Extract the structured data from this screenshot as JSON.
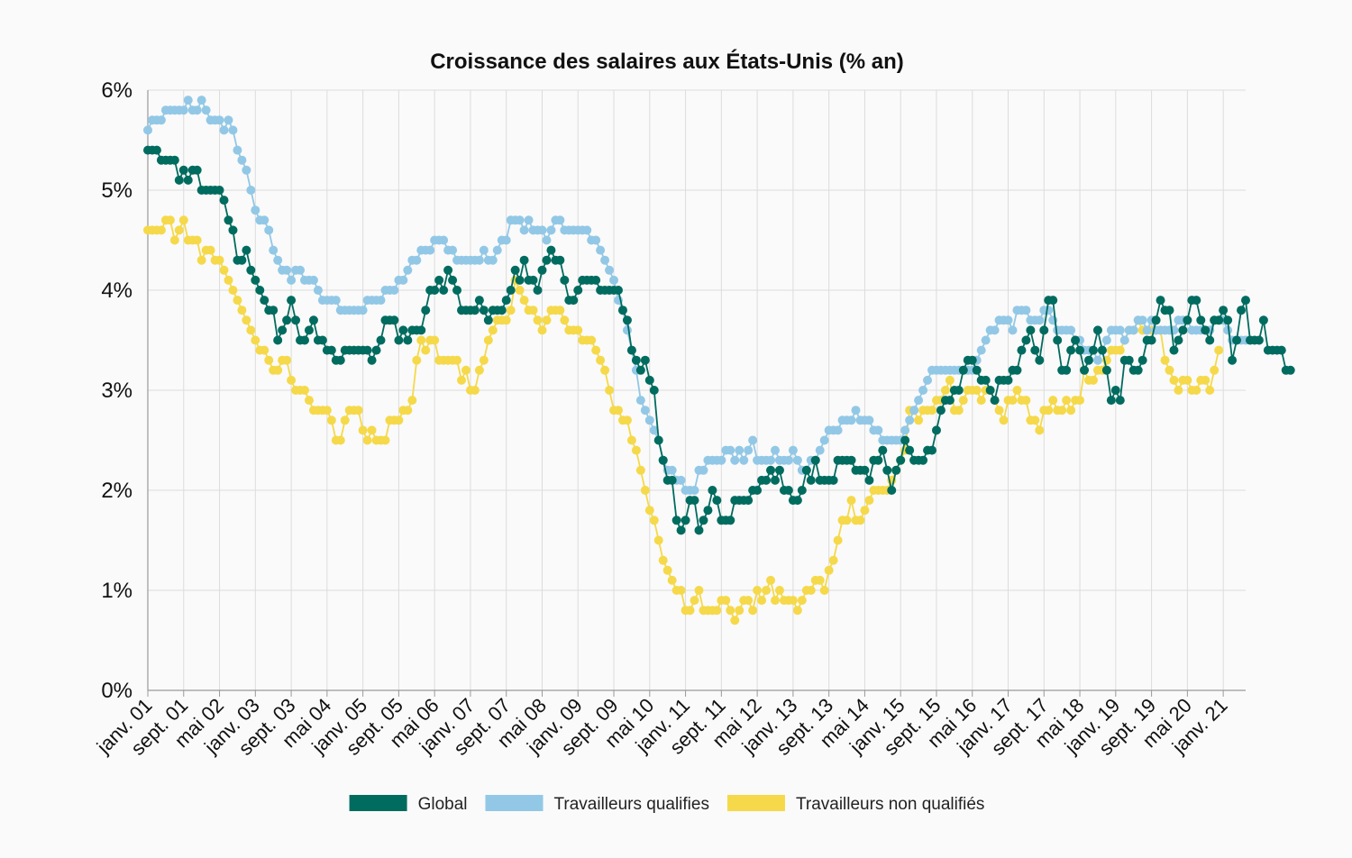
{
  "chart_data": {
    "type": "line",
    "title": "Croissance des salaires aux États-Unis (% an)",
    "xlabel": "",
    "ylabel": "",
    "ylim": [
      0,
      6
    ],
    "yticks": [
      0,
      1,
      2,
      3,
      4,
      5,
      6
    ],
    "ytick_labels": [
      "0%",
      "1%",
      "2%",
      "3%",
      "4%",
      "5%",
      "6%"
    ],
    "x_start": "2001-01",
    "x_end": "2021-06",
    "xtick_labels": [
      "janv. 01",
      "sept. 01",
      "mai 02",
      "janv. 03",
      "sept. 03",
      "mai 04",
      "janv. 05",
      "sept. 05",
      "mai 06",
      "janv. 07",
      "sept. 07",
      "mai 08",
      "janv. 09",
      "sept. 09",
      "mai 10",
      "janv. 11",
      "sept. 11",
      "mai 12",
      "janv. 13",
      "sept. 13",
      "mai 14",
      "janv. 15",
      "sept. 15",
      "mai 16",
      "janv. 17",
      "sept. 17",
      "mai 18",
      "janv. 19",
      "sept. 19",
      "mai 20",
      "janv. 21"
    ],
    "grid": true,
    "legend_position": "bottom",
    "series": [
      {
        "name": "Global",
        "color": "#006b5f",
        "values": [
          5.4,
          5.4,
          5.4,
          5.3,
          5.3,
          5.3,
          5.3,
          5.1,
          5.2,
          5.1,
          5.2,
          5.2,
          5.0,
          5.0,
          5.0,
          5.0,
          5.0,
          4.9,
          4.7,
          4.6,
          4.3,
          4.3,
          4.4,
          4.2,
          4.1,
          4.0,
          3.9,
          3.8,
          3.8,
          3.5,
          3.6,
          3.7,
          3.9,
          3.7,
          3.5,
          3.5,
          3.6,
          3.7,
          3.5,
          3.5,
          3.4,
          3.4,
          3.3,
          3.3,
          3.4,
          3.4,
          3.4,
          3.4,
          3.4,
          3.4,
          3.3,
          3.4,
          3.5,
          3.7,
          3.7,
          3.7,
          3.5,
          3.6,
          3.5,
          3.6,
          3.6,
          3.6,
          3.8,
          4.0,
          4.0,
          4.1,
          4.0,
          4.2,
          4.1,
          4.0,
          3.8,
          3.8,
          3.8,
          3.8,
          3.9,
          3.8,
          3.7,
          3.8,
          3.8,
          3.8,
          3.9,
          4.0,
          4.2,
          4.1,
          4.3,
          4.1,
          4.1,
          4.0,
          4.2,
          4.3,
          4.4,
          4.3,
          4.3,
          4.1,
          3.9,
          3.9,
          4.0,
          4.1,
          4.1,
          4.1,
          4.1,
          4.0,
          4.0,
          4.0,
          4.0,
          4.0,
          3.8,
          3.7,
          3.4,
          3.3,
          3.2,
          3.3,
          3.1,
          3.0,
          2.5,
          2.3,
          2.1,
          2.1,
          1.7,
          1.6,
          1.7,
          1.9,
          1.9,
          1.6,
          1.7,
          1.8,
          2.0,
          1.9,
          1.7,
          1.7,
          1.7,
          1.9,
          1.9,
          1.9,
          1.9,
          2.0,
          2.0,
          2.1,
          2.1,
          2.2,
          2.1,
          2.2,
          2.0,
          2.0,
          1.9,
          1.9,
          2.0,
          2.2,
          2.1,
          2.3,
          2.1,
          2.1,
          2.1,
          2.1,
          2.3,
          2.3,
          2.3,
          2.3,
          2.2,
          2.2,
          2.2,
          2.1,
          2.3,
          2.3,
          2.4,
          2.2,
          2.0,
          2.2,
          2.3,
          2.5,
          2.4,
          2.3,
          2.3,
          2.3,
          2.4,
          2.4,
          2.6,
          2.8,
          2.9,
          2.9,
          3.0,
          3.0,
          3.2,
          3.3,
          3.3,
          3.2,
          3.1,
          3.1,
          3.0,
          2.9,
          3.1,
          3.1,
          3.1,
          3.2,
          3.2,
          3.4,
          3.5,
          3.6,
          3.4,
          3.3,
          3.6,
          3.9,
          3.9,
          3.5,
          3.2,
          3.2,
          3.4,
          3.5,
          3.4,
          3.2,
          3.3,
          3.4,
          3.6,
          3.4,
          3.2,
          2.9,
          3.0,
          2.9,
          3.3,
          3.3,
          3.2,
          3.2,
          3.3,
          3.5,
          3.5,
          3.7,
          3.9,
          3.8,
          3.8,
          3.4,
          3.5,
          3.6,
          3.7,
          3.9,
          3.9,
          3.7,
          3.6,
          3.5,
          3.7,
          3.7,
          3.8,
          3.7,
          3.3,
          3.5,
          3.8,
          3.9,
          3.5,
          3.5,
          3.5,
          3.7,
          3.4,
          3.4,
          3.4,
          3.4,
          3.2,
          3.2
        ]
      },
      {
        "name": "Travailleurs qualifies",
        "color": "#92c8e6",
        "values": [
          5.6,
          5.7,
          5.7,
          5.7,
          5.8,
          5.8,
          5.8,
          5.8,
          5.8,
          5.9,
          5.8,
          5.8,
          5.9,
          5.8,
          5.7,
          5.7,
          5.7,
          5.6,
          5.7,
          5.6,
          5.4,
          5.3,
          5.2,
          5.0,
          4.8,
          4.7,
          4.7,
          4.6,
          4.4,
          4.3,
          4.2,
          4.2,
          4.1,
          4.2,
          4.2,
          4.1,
          4.1,
          4.1,
          4.0,
          3.9,
          3.9,
          3.9,
          3.9,
          3.8,
          3.8,
          3.8,
          3.8,
          3.8,
          3.8,
          3.9,
          3.9,
          3.9,
          3.9,
          4.0,
          4.0,
          4.0,
          4.1,
          4.1,
          4.2,
          4.3,
          4.3,
          4.4,
          4.4,
          4.4,
          4.5,
          4.5,
          4.5,
          4.4,
          4.4,
          4.3,
          4.3,
          4.3,
          4.3,
          4.3,
          4.3,
          4.4,
          4.3,
          4.3,
          4.4,
          4.5,
          4.5,
          4.7,
          4.7,
          4.7,
          4.6,
          4.7,
          4.6,
          4.6,
          4.6,
          4.5,
          4.6,
          4.7,
          4.7,
          4.6,
          4.6,
          4.6,
          4.6,
          4.6,
          4.6,
          4.5,
          4.5,
          4.4,
          4.3,
          4.2,
          4.1,
          3.9,
          3.8,
          3.6,
          3.4,
          3.2,
          2.9,
          2.8,
          2.7,
          2.6,
          2.5,
          2.3,
          2.2,
          2.2,
          2.1,
          2.1,
          2.0,
          2.0,
          2.0,
          2.2,
          2.2,
          2.3,
          2.3,
          2.3,
          2.3,
          2.4,
          2.4,
          2.3,
          2.4,
          2.3,
          2.4,
          2.5,
          2.3,
          2.3,
          2.3,
          2.3,
          2.4,
          2.3,
          2.3,
          2.3,
          2.4,
          2.3,
          2.2,
          2.2,
          2.3,
          2.3,
          2.4,
          2.5,
          2.6,
          2.6,
          2.6,
          2.7,
          2.7,
          2.7,
          2.8,
          2.7,
          2.7,
          2.7,
          2.6,
          2.6,
          2.5,
          2.5,
          2.5,
          2.5,
          2.5,
          2.6,
          2.7,
          2.8,
          2.9,
          3.0,
          3.1,
          3.2,
          3.2,
          3.2,
          3.2,
          3.2,
          3.2,
          3.2,
          3.2,
          3.2,
          3.2,
          3.3,
          3.4,
          3.5,
          3.6,
          3.6,
          3.7,
          3.7,
          3.7,
          3.6,
          3.8,
          3.8,
          3.8,
          3.7,
          3.7,
          3.7,
          3.8,
          3.8,
          3.7,
          3.6,
          3.6,
          3.6,
          3.6,
          3.5,
          3.5,
          3.4,
          3.4,
          3.4,
          3.3,
          3.4,
          3.5,
          3.6,
          3.6,
          3.6,
          3.5,
          3.6,
          3.6,
          3.7,
          3.7,
          3.6,
          3.7,
          3.6,
          3.6,
          3.6,
          3.6,
          3.6,
          3.7,
          3.7,
          3.7,
          3.6,
          3.6,
          3.6,
          3.6,
          3.6,
          3.7,
          3.7,
          3.7,
          3.6,
          3.5,
          3.5,
          3.5,
          3.5,
          3.5
        ]
      },
      {
        "name": "Travailleurs non qualifiés",
        "color": "#f5d94a",
        "values": [
          4.6,
          4.6,
          4.6,
          4.6,
          4.7,
          4.7,
          4.5,
          4.6,
          4.7,
          4.5,
          4.5,
          4.5,
          4.3,
          4.4,
          4.4,
          4.3,
          4.3,
          4.2,
          4.1,
          4.0,
          3.9,
          3.8,
          3.7,
          3.6,
          3.5,
          3.4,
          3.4,
          3.3,
          3.2,
          3.2,
          3.3,
          3.3,
          3.1,
          3.0,
          3.0,
          3.0,
          2.9,
          2.8,
          2.8,
          2.8,
          2.8,
          2.7,
          2.5,
          2.5,
          2.7,
          2.8,
          2.8,
          2.8,
          2.6,
          2.5,
          2.6,
          2.5,
          2.5,
          2.5,
          2.7,
          2.7,
          2.7,
          2.8,
          2.8,
          2.9,
          3.3,
          3.5,
          3.4,
          3.5,
          3.5,
          3.3,
          3.3,
          3.3,
          3.3,
          3.3,
          3.1,
          3.2,
          3.0,
          3.0,
          3.2,
          3.3,
          3.5,
          3.6,
          3.7,
          3.7,
          3.7,
          3.8,
          4.1,
          4.0,
          3.9,
          3.8,
          3.8,
          3.7,
          3.6,
          3.7,
          3.8,
          3.8,
          3.8,
          3.7,
          3.6,
          3.6,
          3.6,
          3.5,
          3.5,
          3.5,
          3.4,
          3.3,
          3.2,
          3.0,
          2.8,
          2.8,
          2.7,
          2.7,
          2.5,
          2.4,
          2.2,
          2.0,
          1.8,
          1.7,
          1.5,
          1.3,
          1.2,
          1.1,
          1.0,
          1.0,
          0.8,
          0.8,
          0.9,
          1.0,
          0.8,
          0.8,
          0.8,
          0.8,
          0.9,
          0.9,
          0.8,
          0.7,
          0.8,
          0.9,
          0.9,
          0.8,
          1.0,
          0.9,
          1.0,
          1.1,
          0.9,
          1.0,
          0.9,
          0.9,
          0.9,
          0.8,
          0.9,
          1.0,
          1.0,
          1.1,
          1.1,
          1.0,
          1.2,
          1.3,
          1.5,
          1.7,
          1.7,
          1.9,
          1.7,
          1.7,
          1.8,
          1.9,
          2.0,
          2.0,
          2.0,
          2.0,
          2.1,
          2.2,
          2.3,
          2.4,
          2.8,
          2.8,
          2.7,
          2.8,
          2.8,
          2.8,
          2.9,
          2.9,
          3.0,
          3.1,
          2.8,
          2.8,
          2.9,
          3.0,
          3.0,
          3.0,
          2.9,
          3.0,
          3.0,
          2.9,
          2.8,
          2.7,
          2.9,
          2.9,
          3.0,
          2.9,
          2.9,
          2.7,
          2.7,
          2.6,
          2.8,
          2.8,
          2.9,
          2.8,
          2.8,
          2.9,
          2.8,
          2.9,
          2.9,
          3.2,
          3.1,
          3.1,
          3.2,
          3.2,
          3.3,
          3.4,
          3.4,
          3.4,
          3.5,
          3.6,
          3.6,
          3.7,
          3.6,
          3.6,
          3.6,
          3.6,
          3.6,
          3.3,
          3.2,
          3.1,
          3.0,
          3.1,
          3.1,
          3.0,
          3.0,
          3.1,
          3.1,
          3.0,
          3.2,
          3.4
        ]
      }
    ]
  }
}
